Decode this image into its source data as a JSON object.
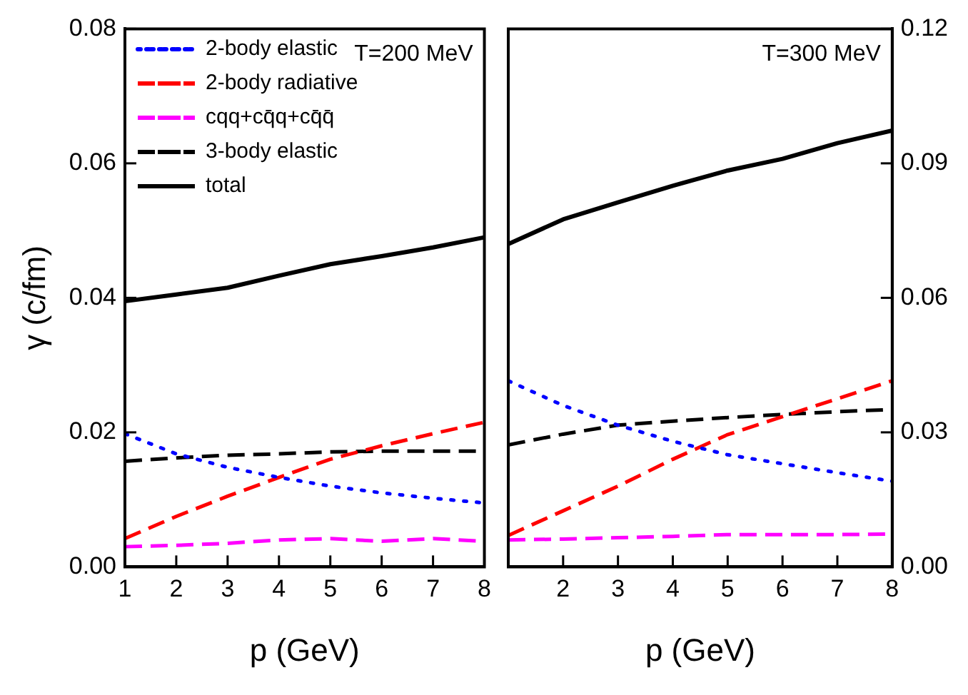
{
  "chart_data": [
    {
      "type": "line",
      "xlabel": "p (GeV)",
      "ylabel": "γ (c/fm)",
      "annotations": [
        "T=200 MeV"
      ],
      "x": [
        1,
        2,
        3,
        4,
        5,
        6,
        7,
        8
      ],
      "xlim": [
        1,
        8
      ],
      "xticks": [
        1,
        2,
        3,
        4,
        5,
        6,
        7,
        8
      ],
      "ylim": [
        0,
        0.08
      ],
      "yticks": [
        {
          "value": 0,
          "label": "0.00"
        },
        {
          "value": 0.02,
          "label": "0.02"
        },
        {
          "value": 0.04,
          "label": "0.04"
        },
        {
          "value": 0.06,
          "label": "0.06"
        },
        {
          "value": 0.08,
          "label": "0.08"
        }
      ],
      "grid": false,
      "legend": "top left",
      "marker": "none",
      "series": [
        {
          "name": "2-body elastic",
          "color": "#0000ff",
          "line_style": "dotted",
          "values": [
            0.0198,
            0.0168,
            0.0148,
            0.0133,
            0.012,
            0.011,
            0.0102,
            0.0095
          ]
        },
        {
          "name": "2-body radiative",
          "color": "#ff0000",
          "line_style": "dashed",
          "values": [
            0.0042,
            0.0075,
            0.0105,
            0.0133,
            0.016,
            0.018,
            0.0198,
            0.0215
          ]
        },
        {
          "name": "cqq+cq̄q+cq̄q̄",
          "color": "#ff00ff",
          "line_style": "dashed",
          "values": [
            0.003,
            0.0032,
            0.0035,
            0.004,
            0.0042,
            0.0038,
            0.0042,
            0.0038
          ]
        },
        {
          "name": "3-body elastic",
          "color": "#000000",
          "line_style": "dashed",
          "values": [
            0.0157,
            0.0162,
            0.0166,
            0.0168,
            0.0171,
            0.0172,
            0.0172,
            0.0172
          ]
        },
        {
          "name": "total",
          "color": "#000000",
          "line_style": "solid",
          "values": [
            0.0395,
            0.0405,
            0.0415,
            0.0433,
            0.045,
            0.0462,
            0.0475,
            0.049
          ]
        }
      ]
    },
    {
      "type": "line",
      "xlabel": "p (GeV)",
      "annotations": [
        "T=300 MeV"
      ],
      "x": [
        1,
        2,
        3,
        4,
        5,
        6,
        7,
        8
      ],
      "xlim": [
        1,
        8
      ],
      "xticks": [
        {
          "value": 1,
          "label": null
        },
        2,
        3,
        4,
        5,
        6,
        7,
        8
      ],
      "y2lim": [
        0,
        0.12
      ],
      "y2ticks": [
        {
          "value": 0,
          "label": "0.00"
        },
        {
          "value": 0.03,
          "label": "0.03"
        },
        {
          "value": 0.06,
          "label": "0.06"
        },
        {
          "value": 0.09,
          "label": "0.09"
        },
        {
          "value": 0.12,
          "label": "0.12"
        }
      ],
      "grid": false,
      "marker": "none",
      "series": [
        {
          "color": "#0000ff",
          "line_style": "dotted",
          "axis": "y2",
          "values": [
            0.0415,
            0.036,
            0.0316,
            0.028,
            0.025,
            0.023,
            0.021,
            0.0191
          ]
        },
        {
          "color": "#ff0000",
          "line_style": "dashed",
          "axis": "y2",
          "values": [
            0.007,
            0.0125,
            0.018,
            0.024,
            0.0295,
            0.0335,
            0.0375,
            0.0415
          ]
        },
        {
          "color": "#ff00ff",
          "line_style": "dashed",
          "axis": "y2",
          "values": [
            0.006,
            0.0062,
            0.0065,
            0.0068,
            0.0072,
            0.0072,
            0.0072,
            0.0073
          ]
        },
        {
          "color": "#000000",
          "line_style": "dashed",
          "axis": "y2",
          "values": [
            0.0272,
            0.0296,
            0.0316,
            0.0325,
            0.0333,
            0.034,
            0.0346,
            0.0351
          ]
        },
        {
          "color": "#000000",
          "line_style": "solid",
          "axis": "y2",
          "values": [
            0.072,
            0.0775,
            0.0813,
            0.085,
            0.0884,
            0.091,
            0.0945,
            0.0973
          ]
        }
      ]
    }
  ]
}
